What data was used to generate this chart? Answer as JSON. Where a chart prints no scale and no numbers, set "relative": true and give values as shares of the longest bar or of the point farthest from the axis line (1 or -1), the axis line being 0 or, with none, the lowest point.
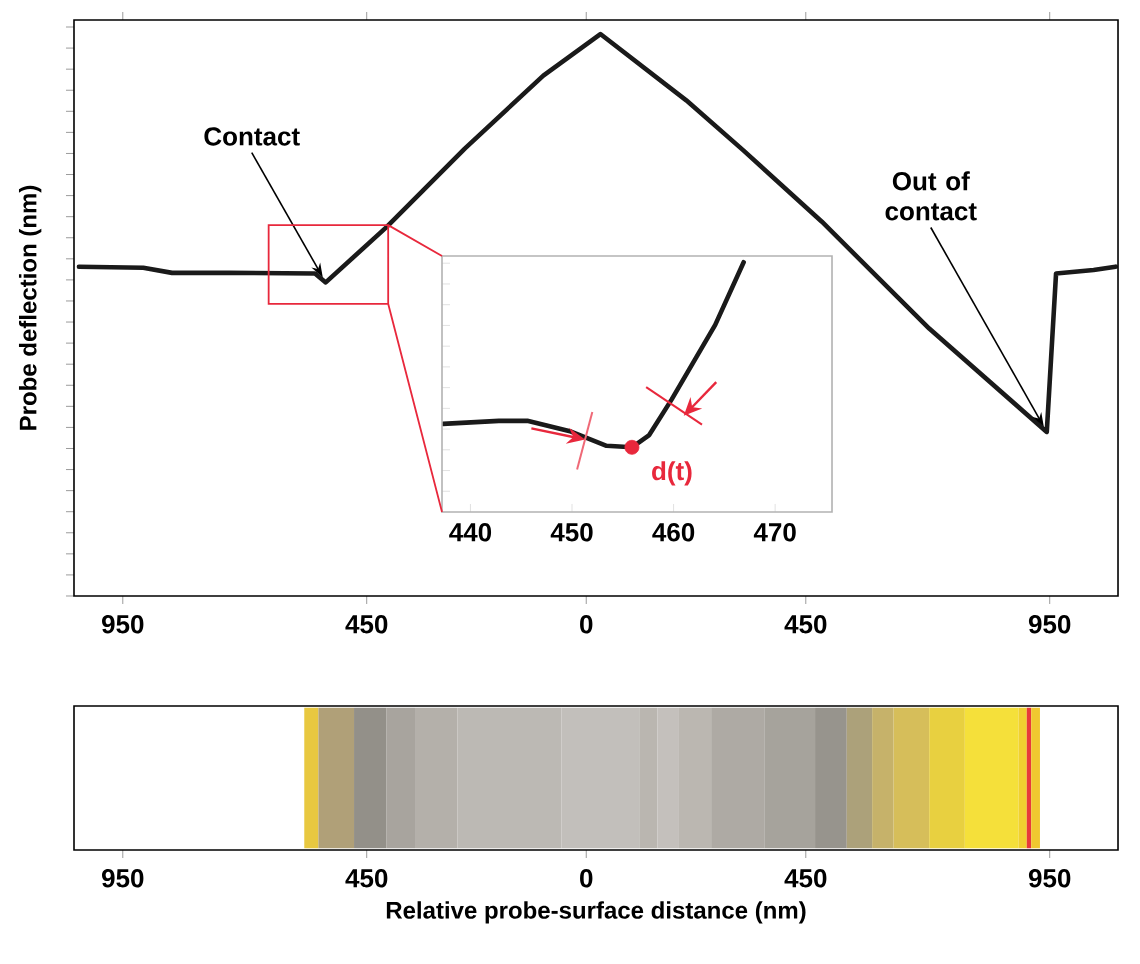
{
  "chart_data": [
    {
      "type": "line",
      "ylabel": "Probe deflection (nm)",
      "relative": true,
      "tick_labels": "x",
      "xlim": [
        -1050,
        1090
      ],
      "xticks": [
        {
          "value": -950,
          "label": "950"
        },
        {
          "value": -450,
          "label": "450"
        },
        0,
        {
          "value": 450,
          "label": "450"
        },
        {
          "value": 950,
          "label": "950"
        }
      ],
      "x": [
        -1040,
        -908,
        -849,
        -732,
        -556,
        -534,
        -410,
        -249,
        -88,
        29,
        205,
        322,
        483,
        703,
        944,
        963,
        1040,
        1085
      ],
      "series": [
        {
          "color": "#1a1a1a",
          "values": [
            0.586,
            0.584,
            0.575,
            0.575,
            0.574,
            0.558,
            0.656,
            0.796,
            0.926,
            1.0,
            0.882,
            0.793,
            0.666,
            0.476,
            0.292,
            0.574,
            0.58,
            0.586
          ]
        }
      ],
      "annotations": [
        {
          "text": "Contact",
          "x": -534,
          "y": 0.558
        },
        {
          "text": "Out of contact",
          "x": 944,
          "y": 0.292
        }
      ]
    },
    {
      "type": "line",
      "relative": true,
      "tick_labels": "x",
      "xlim": [
        437.2,
        475.6
      ],
      "xticks": [
        440,
        450,
        460,
        470
      ],
      "x": [
        437.3,
        442.8,
        445.6,
        449.9,
        453.4,
        455.9,
        457.6,
        459.8,
        464.1,
        466.9
      ],
      "series": [
        {
          "color": "#1a1a1a",
          "values": [
            0.353,
            0.365,
            0.365,
            0.322,
            0.265,
            0.259,
            0.308,
            0.45,
            0.749,
            1.0
          ]
        },
        {
          "type": "scatter",
          "color": "#e8283c",
          "x": [
            455.9
          ],
          "values": [
            0.259
          ]
        }
      ],
      "annotations": [
        {
          "text": "d(t)",
          "x": 455.9,
          "y": 0.259
        }
      ]
    },
    {
      "type": "other",
      "xlabel": "Relative probe-surface distance (nm)",
      "annotations": [
        "950",
        "450",
        "0",
        "450",
        "950"
      ]
    }
  ]
}
